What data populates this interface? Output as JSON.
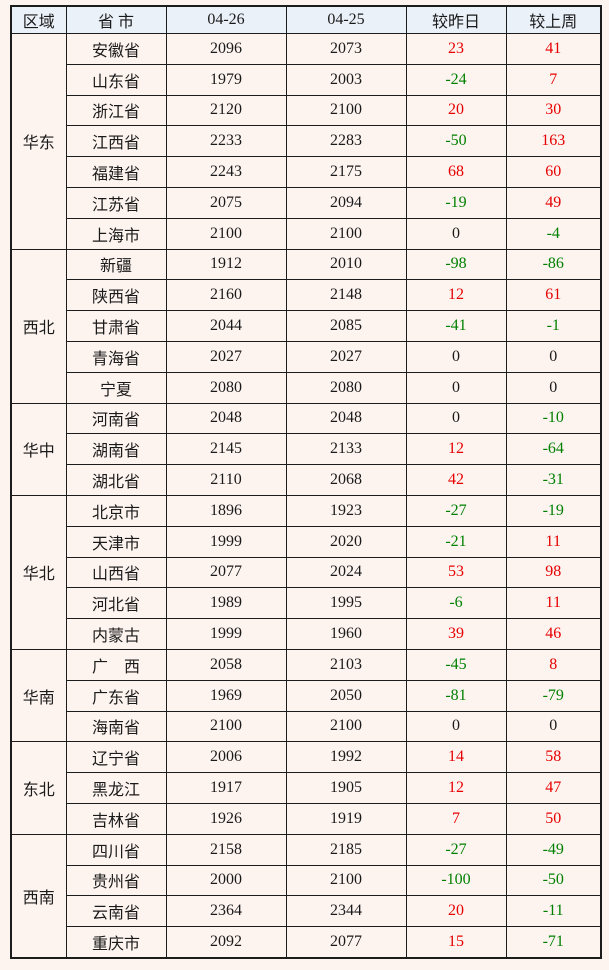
{
  "colors": {
    "positive": "#e60000",
    "negative": "#008000",
    "zero": "#1a1a1a",
    "header_bg": "#eaf1f9",
    "body_bg": "#fdf4f0",
    "border": "#1c1c1c"
  },
  "chart_data": {
    "type": "table",
    "columns": [
      "区域",
      "省 市",
      "04-26",
      "04-25",
      "较昨日",
      "较上周"
    ],
    "regions": [
      {
        "region": "华东",
        "rows": [
          {
            "province": "安徽省",
            "price_0426": 2096,
            "price_0425": 2073,
            "vs_yesterday": 23,
            "vs_last_week": 41
          },
          {
            "province": "山东省",
            "price_0426": 1979,
            "price_0425": 2003,
            "vs_yesterday": -24,
            "vs_last_week": 7
          },
          {
            "province": "浙江省",
            "price_0426": 2120,
            "price_0425": 2100,
            "vs_yesterday": 20,
            "vs_last_week": 30
          },
          {
            "province": "江西省",
            "price_0426": 2233,
            "price_0425": 2283,
            "vs_yesterday": -50,
            "vs_last_week": 163
          },
          {
            "province": "福建省",
            "price_0426": 2243,
            "price_0425": 2175,
            "vs_yesterday": 68,
            "vs_last_week": 60
          },
          {
            "province": "江苏省",
            "price_0426": 2075,
            "price_0425": 2094,
            "vs_yesterday": -19,
            "vs_last_week": 49
          },
          {
            "province": "上海市",
            "price_0426": 2100,
            "price_0425": 2100,
            "vs_yesterday": 0,
            "vs_last_week": -4
          }
        ]
      },
      {
        "region": "西北",
        "rows": [
          {
            "province": "新疆",
            "price_0426": 1912,
            "price_0425": 2010,
            "vs_yesterday": -98,
            "vs_last_week": -86
          },
          {
            "province": "陕西省",
            "price_0426": 2160,
            "price_0425": 2148,
            "vs_yesterday": 12,
            "vs_last_week": 61
          },
          {
            "province": "甘肃省",
            "price_0426": 2044,
            "price_0425": 2085,
            "vs_yesterday": -41,
            "vs_last_week": -1
          },
          {
            "province": "青海省",
            "price_0426": 2027,
            "price_0425": 2027,
            "vs_yesterday": 0,
            "vs_last_week": 0
          },
          {
            "province": "宁夏",
            "price_0426": 2080,
            "price_0425": 2080,
            "vs_yesterday": 0,
            "vs_last_week": 0
          }
        ]
      },
      {
        "region": "华中",
        "rows": [
          {
            "province": "河南省",
            "price_0426": 2048,
            "price_0425": 2048,
            "vs_yesterday": 0,
            "vs_last_week": -10
          },
          {
            "province": "湖南省",
            "price_0426": 2145,
            "price_0425": 2133,
            "vs_yesterday": 12,
            "vs_last_week": -64
          },
          {
            "province": "湖北省",
            "price_0426": 2110,
            "price_0425": 2068,
            "vs_yesterday": 42,
            "vs_last_week": -31
          }
        ]
      },
      {
        "region": "华北",
        "rows": [
          {
            "province": "北京市",
            "price_0426": 1896,
            "price_0425": 1923,
            "vs_yesterday": -27,
            "vs_last_week": -19
          },
          {
            "province": "天津市",
            "price_0426": 1999,
            "price_0425": 2020,
            "vs_yesterday": -21,
            "vs_last_week": 11
          },
          {
            "province": "山西省",
            "price_0426": 2077,
            "price_0425": 2024,
            "vs_yesterday": 53,
            "vs_last_week": 98
          },
          {
            "province": "河北省",
            "price_0426": 1989,
            "price_0425": 1995,
            "vs_yesterday": -6,
            "vs_last_week": 11
          },
          {
            "province": "内蒙古",
            "price_0426": 1999,
            "price_0425": 1960,
            "vs_yesterday": 39,
            "vs_last_week": 46
          }
        ]
      },
      {
        "region": "华南",
        "rows": [
          {
            "province": "广　西",
            "price_0426": 2058,
            "price_0425": 2103,
            "vs_yesterday": -45,
            "vs_last_week": 8
          },
          {
            "province": "广东省",
            "price_0426": 1969,
            "price_0425": 2050,
            "vs_yesterday": -81,
            "vs_last_week": -79
          },
          {
            "province": "海南省",
            "price_0426": 2100,
            "price_0425": 2100,
            "vs_yesterday": 0,
            "vs_last_week": 0
          }
        ]
      },
      {
        "region": "东北",
        "rows": [
          {
            "province": "辽宁省",
            "price_0426": 2006,
            "price_0425": 1992,
            "vs_yesterday": 14,
            "vs_last_week": 58
          },
          {
            "province": "黑龙江",
            "price_0426": 1917,
            "price_0425": 1905,
            "vs_yesterday": 12,
            "vs_last_week": 47
          },
          {
            "province": "吉林省",
            "price_0426": 1926,
            "price_0425": 1919,
            "vs_yesterday": 7,
            "vs_last_week": 50
          }
        ]
      },
      {
        "region": "西南",
        "rows": [
          {
            "province": "四川省",
            "price_0426": 2158,
            "price_0425": 2185,
            "vs_yesterday": -27,
            "vs_last_week": -49
          },
          {
            "province": "贵州省",
            "price_0426": 2000,
            "price_0425": 2100,
            "vs_yesterday": -100,
            "vs_last_week": -50
          },
          {
            "province": "云南省",
            "price_0426": 2364,
            "price_0425": 2344,
            "vs_yesterday": 20,
            "vs_last_week": -11
          },
          {
            "province": "重庆市",
            "price_0426": 2092,
            "price_0425": 2077,
            "vs_yesterday": 15,
            "vs_last_week": -71
          }
        ]
      }
    ]
  }
}
